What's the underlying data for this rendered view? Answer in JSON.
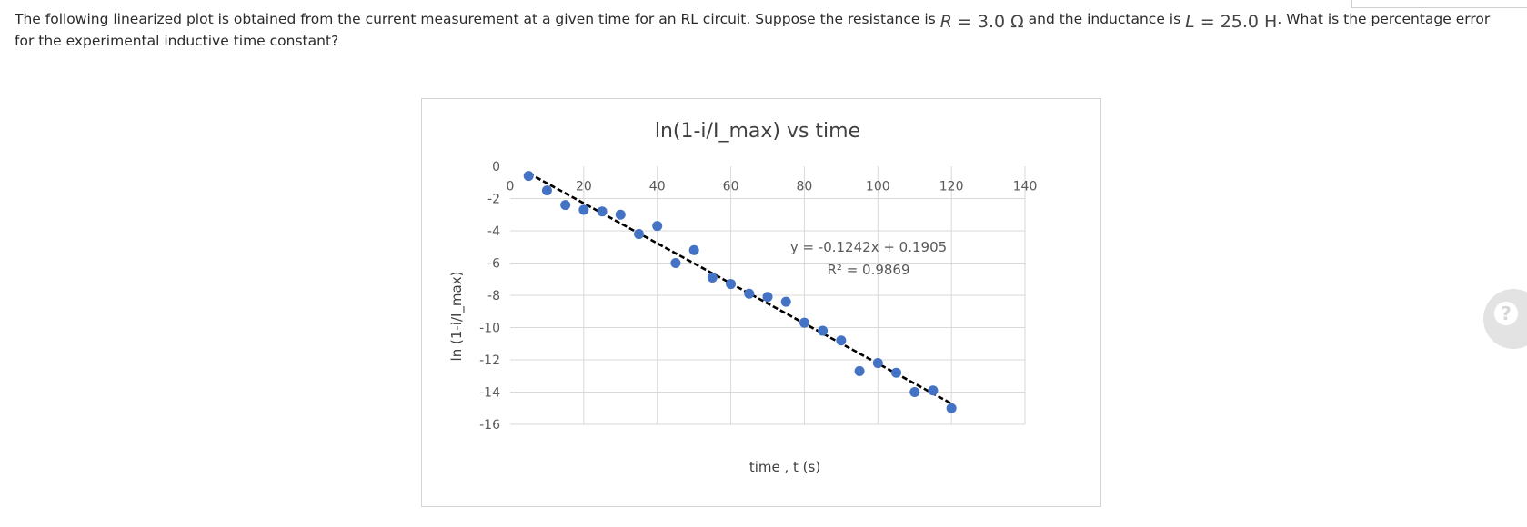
{
  "question": {
    "part1": "The following linearized plot is obtained from the current measurement at a given time for an RL circuit. Suppose the resistance is",
    "r_symbol": "R",
    "r_value": " = 3.0 Ω",
    "part2": "and the inductance is",
    "l_symbol": "L",
    "l_value": " = 25.0 H",
    "part3": ". What is the percentage error for the experimental inductive time constant?"
  },
  "help_button": {
    "icon": "question-icon",
    "label": "?"
  },
  "chart_data": {
    "type": "scatter",
    "title": "ln(1-i/I_max) vs time",
    "xlabel": "time , t (s)",
    "ylabel": "ln (1-i/I_max)",
    "xlim": [
      0,
      140
    ],
    "ylim": [
      -16,
      0
    ],
    "x_ticks": [
      "0",
      "20",
      "40",
      "60",
      "80",
      "100",
      "120",
      "140"
    ],
    "y_ticks": [
      "0",
      "-2",
      "-4",
      "-6",
      "-8",
      "-10",
      "-12",
      "-14",
      "-16"
    ],
    "grid": true,
    "marker_color": "#4472c4",
    "trendline": {
      "equation": "y = -0.1242x + 0.1905",
      "r_squared": "R² = 0.9869",
      "slope": -0.1242,
      "intercept": 0.1905,
      "x_range": [
        5,
        120
      ],
      "style": "dashed black"
    },
    "series": [
      {
        "x": [
          5,
          10,
          15,
          20,
          25,
          30,
          35,
          40,
          45,
          50,
          55,
          60,
          65,
          70,
          75,
          80,
          85,
          90,
          95,
          100,
          105,
          110,
          115,
          120
        ],
        "y": [
          -0.6,
          -1.5,
          -2.4,
          -2.7,
          -2.8,
          -3.0,
          -4.2,
          -3.7,
          -6.0,
          -5.2,
          -6.9,
          -7.3,
          -7.9,
          -8.1,
          -8.4,
          -9.7,
          -10.2,
          -10.8,
          -12.7,
          -12.2,
          -12.8,
          -14.0,
          -13.9,
          -15.0
        ]
      }
    ]
  }
}
